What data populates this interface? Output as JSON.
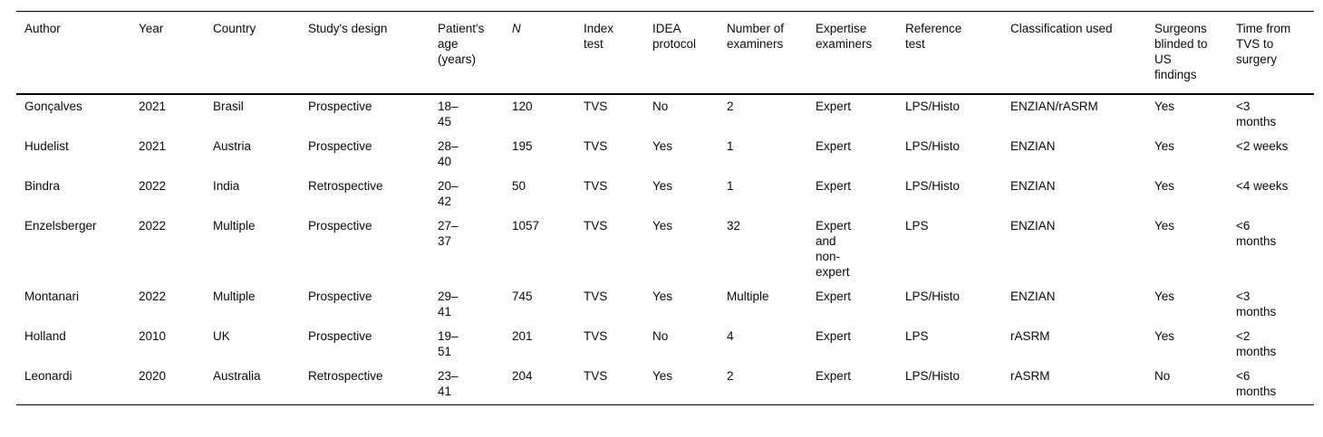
{
  "table": {
    "columns": [
      {
        "key": "author",
        "label": "Author"
      },
      {
        "key": "year",
        "label": "Year"
      },
      {
        "key": "country",
        "label": "Country"
      },
      {
        "key": "design",
        "label": "Study's design"
      },
      {
        "key": "age",
        "label": "Patient's age (years)"
      },
      {
        "key": "n",
        "label": "N"
      },
      {
        "key": "index",
        "label": "Index test"
      },
      {
        "key": "idea",
        "label": "IDEA protocol"
      },
      {
        "key": "examiners",
        "label": "Number of examiners"
      },
      {
        "key": "expertise",
        "label": "Expertise examiners"
      },
      {
        "key": "reference",
        "label": "Reference test"
      },
      {
        "key": "classification",
        "label": "Classification used"
      },
      {
        "key": "blinded",
        "label": "Surgeons blinded to US findings"
      },
      {
        "key": "time",
        "label": "Time from TVS to surgery"
      }
    ],
    "rows": [
      {
        "author": "Gonçalves",
        "year": "2021",
        "country": "Brasil",
        "design": "Prospective",
        "age": "18–45",
        "n": "120",
        "index": "TVS",
        "idea": "No",
        "examiners": "2",
        "expertise": "Expert",
        "reference": "LPS/Histo",
        "classification": "ENZIAN/rASRM",
        "blinded": "Yes",
        "time": "<3 months"
      },
      {
        "author": "Hudelist",
        "year": "2021",
        "country": "Austria",
        "design": "Prospective",
        "age": "28–40",
        "n": "195",
        "index": "TVS",
        "idea": "Yes",
        "examiners": "1",
        "expertise": "Expert",
        "reference": "LPS/Histo",
        "classification": "ENZIAN",
        "blinded": "Yes",
        "time": "<2 weeks"
      },
      {
        "author": "Bindra",
        "year": "2022",
        "country": "India",
        "design": "Retrospective",
        "age": "20–42",
        "n": "50",
        "index": "TVS",
        "idea": "Yes",
        "examiners": "1",
        "expertise": "Expert",
        "reference": "LPS/Histo",
        "classification": "ENZIAN",
        "blinded": "Yes",
        "time": "<4 weeks"
      },
      {
        "author": "Enzelsberger",
        "year": "2022",
        "country": "Multiple",
        "design": "Prospective",
        "age": "27–37",
        "n": "1057",
        "index": "TVS",
        "idea": "Yes",
        "examiners": "32",
        "expertise": "Expert and non-expert",
        "reference": "LPS",
        "classification": "ENZIAN",
        "blinded": "Yes",
        "time": "<6 months"
      },
      {
        "author": "Montanari",
        "year": "2022",
        "country": "Multiple",
        "design": "Prospective",
        "age": "29–41",
        "n": "745",
        "index": "TVS",
        "idea": "Yes",
        "examiners": "Multiple",
        "expertise": "Expert",
        "reference": "LPS/Histo",
        "classification": "ENZIAN",
        "blinded": "Yes",
        "time": "<3 months"
      },
      {
        "author": "Holland",
        "year": "2010",
        "country": "UK",
        "design": "Prospective",
        "age": "19–51",
        "n": "201",
        "index": "TVS",
        "idea": "No",
        "examiners": "4",
        "expertise": "Expert",
        "reference": "LPS",
        "classification": "rASRM",
        "blinded": "Yes",
        "time": "<2 months"
      },
      {
        "author": "Leonardi",
        "year": "2020",
        "country": "Australia",
        "design": "Retrospective",
        "age": "23–41",
        "n": "204",
        "index": "TVS",
        "idea": "Yes",
        "examiners": "2",
        "expertise": "Expert",
        "reference": "LPS/Histo",
        "classification": "rASRM",
        "blinded": "No",
        "time": "<6 months"
      }
    ]
  }
}
